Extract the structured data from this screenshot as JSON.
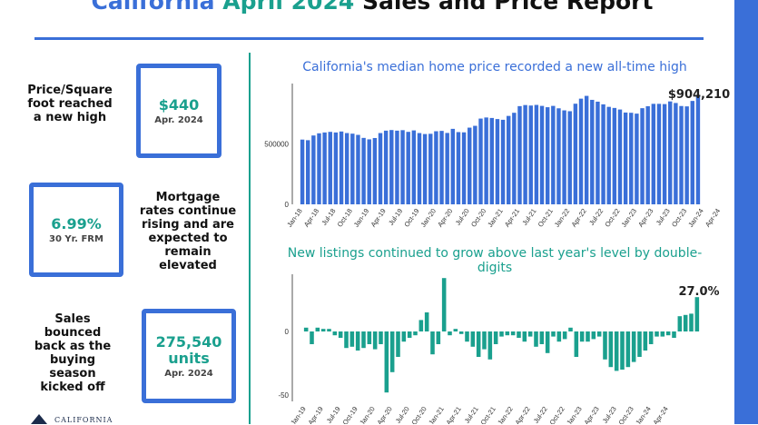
{
  "header": {
    "title_part1": "California",
    "title_part2": "April 2024",
    "title_part3": "Sales and Price Report"
  },
  "stats": [
    {
      "text_lines": [
        "Price/Square",
        "foot reached",
        "a new high"
      ],
      "value": "$440",
      "value_line2": "",
      "sub": "Apr. 2024"
    },
    {
      "text_lines": [
        "Mortgage",
        "rates continue",
        "rising and are",
        "expected to",
        "remain",
        "elevated"
      ],
      "value": "6.99%",
      "value_line2": "",
      "sub": "30 Yr. FRM"
    },
    {
      "text_lines": [
        "Sales",
        "bounced",
        "back as the",
        "buying",
        "season",
        "kicked off"
      ],
      "value": "275,540",
      "value_line2": "units",
      "sub": "Apr. 2024"
    }
  ],
  "logo_text": "CALIFORNIA",
  "colors": {
    "blue": "#3a6fd8",
    "teal": "#1aa08e"
  },
  "chart_data": [
    {
      "type": "bar",
      "title": "California's median home price recorded a new all-time high",
      "annotation": "$904,210",
      "ylim": [
        0,
        1000000
      ],
      "yticks": [
        0,
        500000
      ],
      "ytick_labels": [
        "0",
        "500000"
      ],
      "xtick_labels": [
        "Jan-18",
        "Apr-18",
        "Jul-18",
        "Oct-18",
        "Jan-19",
        "Apr-19",
        "Jul-19",
        "Oct-19",
        "Jan-20",
        "Apr-20",
        "Jul-20",
        "Oct-20",
        "Jan-21",
        "Apr-21",
        "Jul-21",
        "Oct-21",
        "Jan-22",
        "Apr-22",
        "Jul-22",
        "Oct-22",
        "Jan-23",
        "Apr-23",
        "Jul-23",
        "Oct-23",
        "Jan-24",
        "Apr-24"
      ],
      "values": [
        536000,
        531000,
        570000,
        588000,
        595000,
        600000,
        595000,
        603000,
        590000,
        585000,
        575000,
        550000,
        538000,
        549000,
        590000,
        610000,
        615000,
        610000,
        614000,
        600000,
        612000,
        590000,
        582000,
        584000,
        605000,
        608000,
        591000,
        625000,
        598000,
        596000,
        635000,
        650000,
        710000,
        719000,
        715000,
        706000,
        700000,
        732000,
        758000,
        813000,
        822000,
        818000,
        823000,
        815000,
        804000,
        815000,
        795000,
        778000,
        771000,
        833000,
        875000,
        898000,
        865000,
        850000,
        828000,
        807000,
        798000,
        785000,
        760000,
        758000,
        751000,
        796000,
        812000,
        832000,
        832000,
        830000,
        852000,
        839000,
        814000,
        811000,
        856000,
        904210
      ],
      "grid": false
    },
    {
      "type": "bar",
      "title": "New listings continued to grow above last year's level by double-digits",
      "annotation": "27.0%",
      "ylim": [
        -55,
        45
      ],
      "yticks": [
        0,
        -50
      ],
      "ytick_labels": [
        "0",
        "-50"
      ],
      "xtick_labels": [
        "Jan-19",
        "Apr-19",
        "Jul-19",
        "Oct-19",
        "Jan-20",
        "Apr-20",
        "Jul-20",
        "Oct-20",
        "Jan-21",
        "Apr-21",
        "Jul-21",
        "Oct-21",
        "Jan-22",
        "Apr-22",
        "Jul-22",
        "Oct-22",
        "Jan-23",
        "Apr-23",
        "Jul-23",
        "Oct-23",
        "Jan-24",
        "Apr-24"
      ],
      "values": [
        3,
        -10,
        3,
        2,
        2,
        -3,
        -5,
        -13,
        -12,
        -15,
        -13,
        -10,
        -14,
        -10,
        -48,
        -32,
        -20,
        -8,
        -5,
        -3,
        9,
        15,
        -18,
        -10,
        42,
        -3,
        2,
        -2,
        -8,
        -12,
        -20,
        -14,
        -22,
        -10,
        -4,
        -3,
        -3,
        -5,
        -8,
        -4,
        -12,
        -10,
        -17,
        -4,
        -8,
        -6,
        3,
        -20,
        -8,
        -8,
        -6,
        -4,
        -22,
        -28,
        -31,
        -30,
        -28,
        -24,
        -20,
        -15,
        -10,
        -4,
        -4,
        -3,
        -5,
        12,
        13,
        14,
        27
      ],
      "grid": false
    }
  ]
}
